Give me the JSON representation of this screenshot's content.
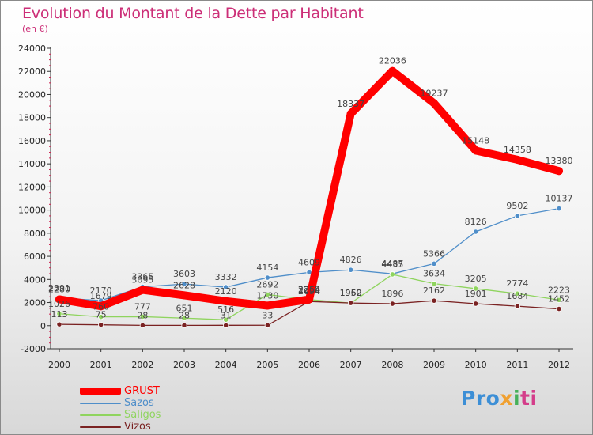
{
  "colors": {
    "GRUST": "#ff0000",
    "Sazos": "#4f8ec9",
    "Saligos": "#8fd45e",
    "Vizos": "#7a2222",
    "title": "#cc2e77"
  },
  "logo": {
    "part1": "Pro",
    "part2": "x",
    "part3": "i",
    "part4": "ti"
  },
  "chart_data": {
    "type": "line",
    "title": "Evolution du Montant de la Dette par Habitant",
    "subtitle": "(en €)",
    "xlabel": "",
    "ylabel": "",
    "ylim": [
      -2000,
      24000
    ],
    "ytick_step": 2000,
    "grid": false,
    "legend_position": "bottom-left",
    "x": [
      "2000",
      "2001",
      "2002",
      "2003",
      "2004",
      "2005",
      "2006",
      "2007",
      "2008",
      "2009",
      "2010",
      "2011",
      "2012"
    ],
    "series": [
      {
        "name": "GRUST",
        "values": [
          2280,
          1679,
          3095,
          2628,
          2120,
          1730,
          2268,
          18337,
          22036,
          19237,
          15148,
          14358,
          13380
        ]
      },
      {
        "name": "Sazos",
        "values": [
          2391,
          2170,
          3365,
          3603,
          3332,
          4154,
          4609,
          4826,
          4487,
          5366,
          8126,
          9502,
          10137
        ]
      },
      {
        "name": "Saligos",
        "values": [
          1026,
          760,
          777,
          651,
          516,
          2692,
          2254,
          1952,
          4435,
          3634,
          3205,
          2774,
          2223
        ]
      },
      {
        "name": "Vizos",
        "values": [
          113,
          75,
          28,
          28,
          31,
          33,
          2094,
          1960,
          1896,
          2162,
          1901,
          1684,
          1452
        ]
      }
    ]
  }
}
